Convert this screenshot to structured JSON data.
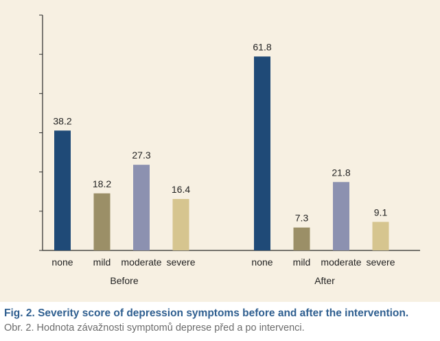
{
  "colors": {
    "panel_background": "#f7f0e2",
    "axis": "#2a2a2a",
    "caption_en": "#2f5f90",
    "caption_cz": "#6b6b6b",
    "none": "#1f4a77",
    "mild": "#9b8f67",
    "moderate": "#8c91b0",
    "severe": "#d6c58f"
  },
  "caption": {
    "english": "Fig. 2. Severity score of depression symptoms before and after the intervention.",
    "czech": "Obr. 2. Hodnota závažnosti symptomů deprese před a po intervenci."
  },
  "chart_data": {
    "type": "bar",
    "title": "",
    "xlabel": "",
    "ylabel": "",
    "ylim": [
      0,
      75
    ],
    "y_tick_step": 12.5,
    "y_tick_labels_shown": false,
    "grid": false,
    "legend": "none",
    "groups": [
      {
        "name": "Before",
        "categories": [
          "none",
          "mild",
          "moderate",
          "severe"
        ],
        "values": [
          38.2,
          18.2,
          27.3,
          16.4
        ],
        "value_labels": [
          "38.2",
          "18.2",
          "27.3",
          "16.4"
        ]
      },
      {
        "name": "After",
        "categories": [
          "none",
          "mild",
          "moderate",
          "severe"
        ],
        "values": [
          61.8,
          7.3,
          21.8,
          9.1
        ],
        "value_labels": [
          "61.8",
          "7.3",
          "21.8",
          "9.1"
        ]
      }
    ]
  }
}
